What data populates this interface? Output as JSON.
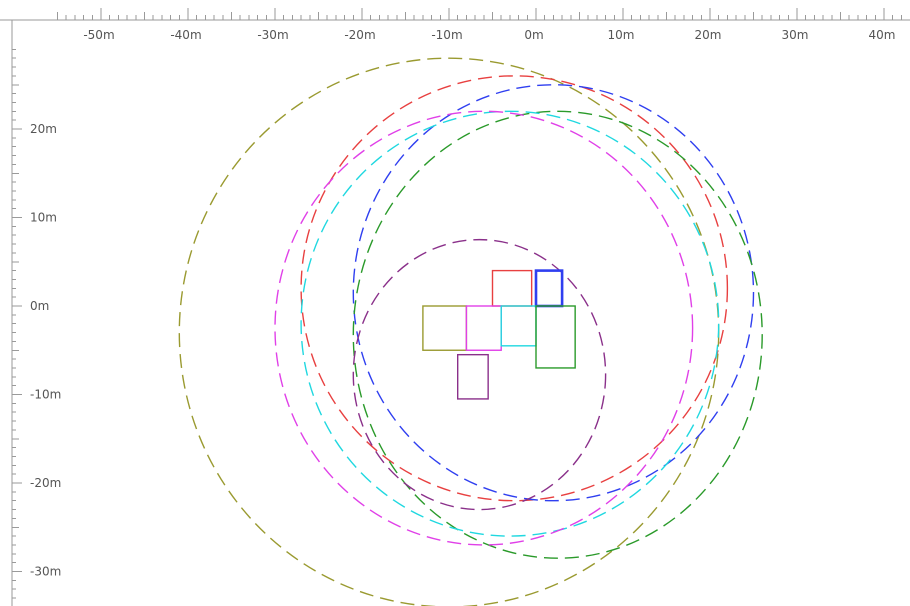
{
  "view": {
    "x_range": [
      -55,
      42
    ],
    "y_range": [
      -33,
      29
    ],
    "units": "m",
    "x_tick_labels": [
      "-50m",
      "-40m",
      "-30m",
      "-20m",
      "-10m",
      "0m",
      "10m",
      "20m",
      "30m",
      "40m"
    ],
    "y_tick_labels": [
      "20m",
      "10m",
      "0m",
      "-10m",
      "-20m",
      "-30m"
    ],
    "x_tick_values": [
      -50,
      -40,
      -30,
      -20,
      -10,
      0,
      10,
      20,
      30,
      40
    ],
    "y_tick_values": [
      20,
      10,
      0,
      -10,
      -20,
      -30
    ]
  },
  "colors": {
    "olive": "#9a9a30",
    "red": "#e84040",
    "blue": "#2f3ff0",
    "green": "#2a9a2a",
    "cyan": "#20d8e0",
    "magenta": "#e040e8",
    "purple": "#8a308a",
    "ruler": "#9a9a9a",
    "label": "#555555"
  },
  "footprints": [
    {
      "id": "red",
      "color": "red",
      "x_min": -5,
      "x_max": -0.5,
      "y_min": 0,
      "y_max": 4
    },
    {
      "id": "blue",
      "color": "blue",
      "x_min": 0,
      "x_max": 3,
      "y_min": 0,
      "y_max": 4,
      "bold": true
    },
    {
      "id": "olive",
      "color": "olive",
      "x_min": -13,
      "x_max": -8,
      "y_min": -5,
      "y_max": 0
    },
    {
      "id": "magenta",
      "color": "magenta",
      "x_min": -8,
      "x_max": -4,
      "y_min": -5,
      "y_max": 0
    },
    {
      "id": "cyan",
      "color": "cyan",
      "x_min": -4,
      "x_max": 0,
      "y_min": -4.5,
      "y_max": 0
    },
    {
      "id": "green",
      "color": "green",
      "x_min": 0,
      "x_max": 4.5,
      "y_min": -7,
      "y_max": 0
    },
    {
      "id": "purple",
      "color": "purple",
      "x_min": -9,
      "x_max": -5.5,
      "y_min": -10.5,
      "y_max": -5.5
    }
  ],
  "ranges": [
    {
      "id": "olive",
      "color": "olive",
      "x_min": -41,
      "x_max": 21,
      "y_min": -34,
      "y_max": 28
    },
    {
      "id": "red",
      "color": "red",
      "x_min": -27,
      "x_max": 22,
      "y_min": -22,
      "y_max": 26
    },
    {
      "id": "blue",
      "color": "blue",
      "x_min": -21,
      "x_max": 25,
      "y_min": -22,
      "y_max": 25
    },
    {
      "id": "green",
      "color": "green",
      "x_min": -21,
      "x_max": 26,
      "y_min": -28.5,
      "y_max": 22
    },
    {
      "id": "cyan",
      "color": "cyan",
      "x_min": -27,
      "x_max": 21,
      "y_min": -26,
      "y_max": 22
    },
    {
      "id": "magenta",
      "color": "magenta",
      "x_min": -30,
      "x_max": 18,
      "y_min": -27,
      "y_max": 22
    },
    {
      "id": "purple",
      "color": "purple",
      "x_min": -21,
      "x_max": 8,
      "y_min": -23,
      "y_max": 7.5
    }
  ]
}
